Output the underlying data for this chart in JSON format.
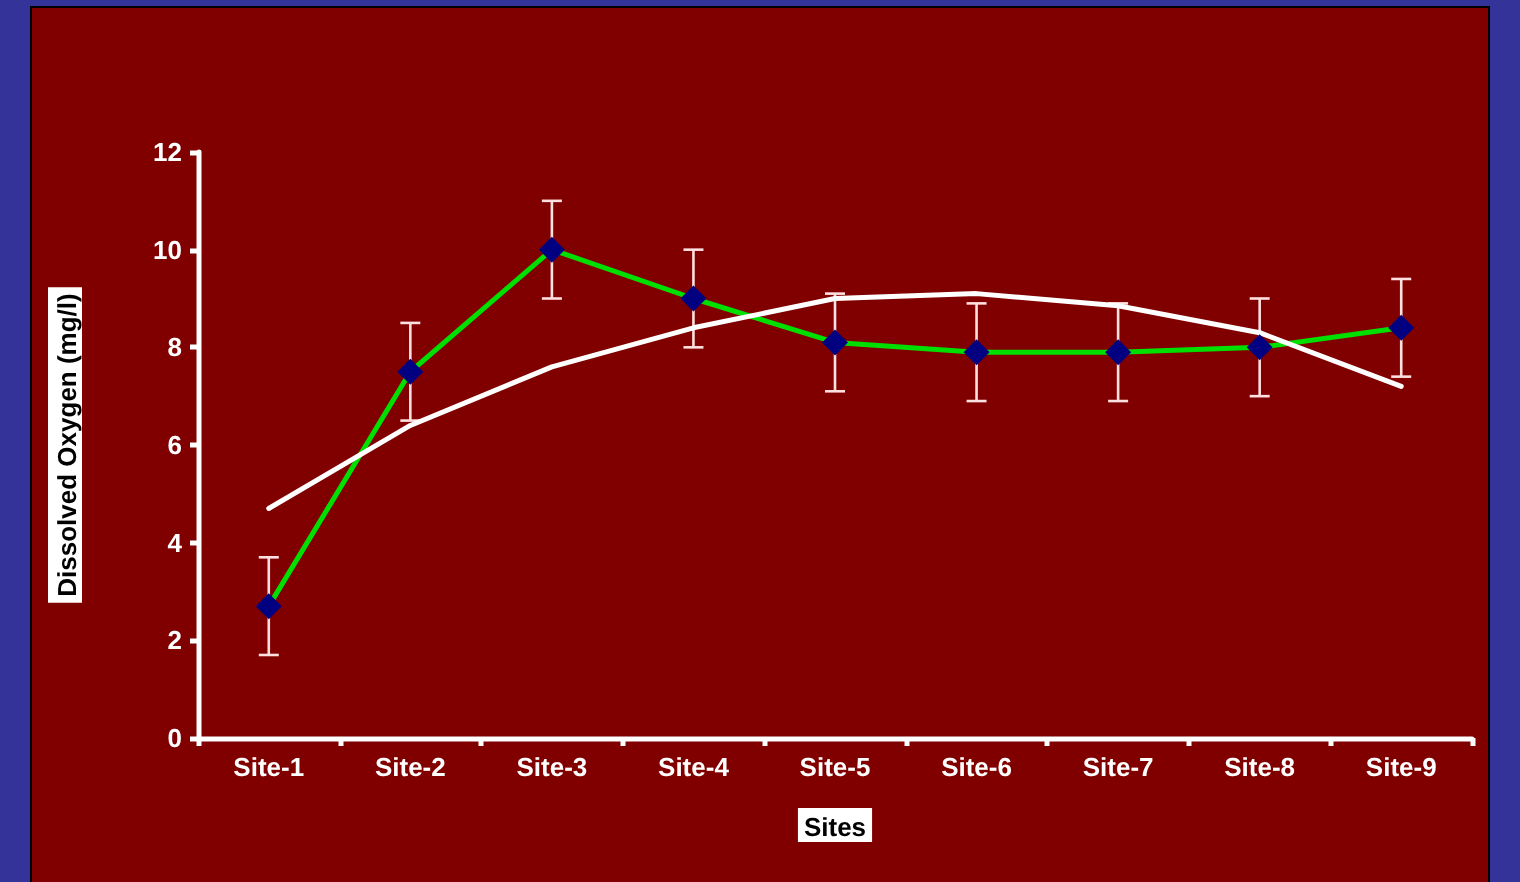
{
  "chart_data": {
    "type": "line",
    "xlabel": "Sites",
    "ylabel": "Dissolved Oxygen (mg/l)",
    "categories": [
      "Site-1",
      "Site-2",
      "Site-3",
      "Site-4",
      "Site-5",
      "Site-6",
      "Site-7",
      "Site-8",
      "Site-9"
    ],
    "series": [
      {
        "color": "#00e000",
        "colors": [
          "#000080",
          "#000080",
          "#000080",
          "#000080",
          "#000080",
          "#000080",
          "#000080",
          "#000080",
          "#000080"
        ],
        "values": [
          2.7,
          7.5,
          10.0,
          9.0,
          8.1,
          7.9,
          7.9,
          8.0,
          8.4
        ],
        "errors": [
          1,
          1,
          1,
          1,
          1,
          1,
          1,
          1,
          1
        ]
      },
      {
        "type": "line",
        "color": "#ffffff",
        "marker": "none",
        "values": [
          4.7,
          6.4,
          7.6,
          8.4,
          9.0,
          9.1,
          8.85,
          8.3,
          7.2
        ]
      }
    ],
    "ylim": [
      0,
      12
    ],
    "yticks": [
      0,
      2,
      4,
      6,
      8,
      10,
      12
    ],
    "marker": "diamond",
    "line_style": "solid",
    "grid": false
  }
}
